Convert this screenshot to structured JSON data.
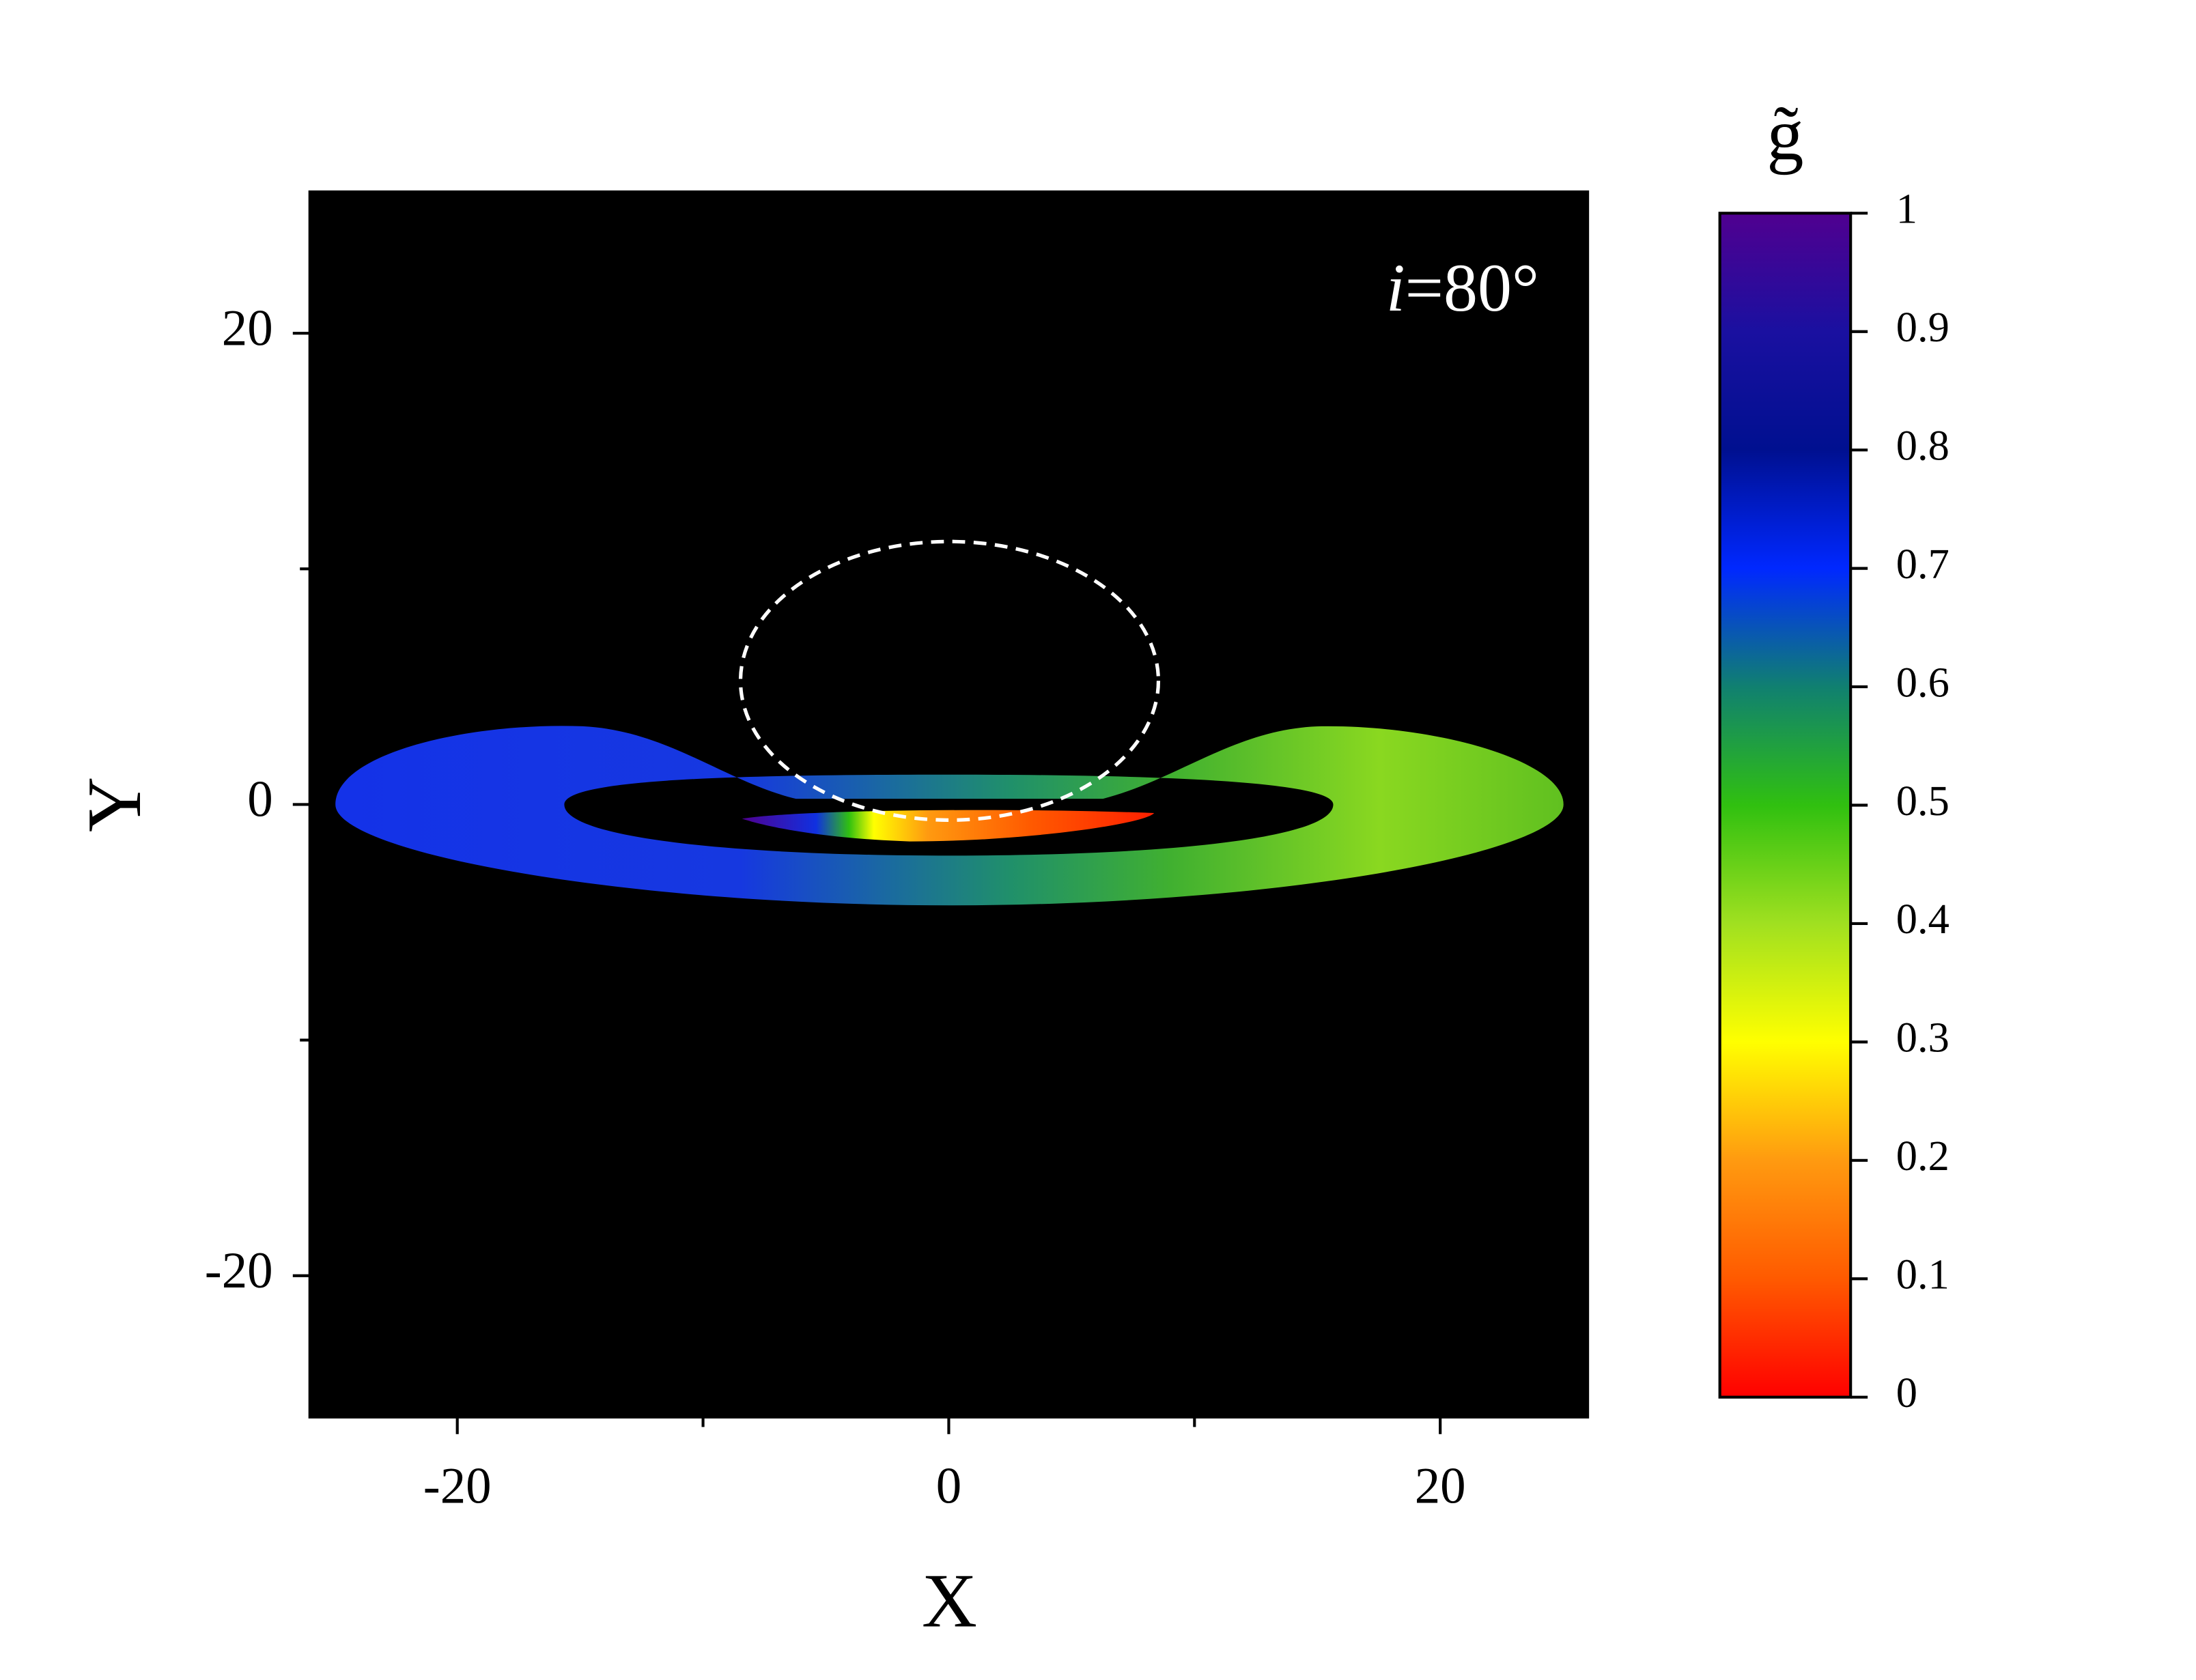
{
  "chart_data": {
    "type": "image",
    "annotation": "i=80°",
    "xlabel": "X",
    "ylabel": "Y",
    "xlim": [
      -26,
      26
    ],
    "xticks": [
      -20,
      0,
      20
    ],
    "xminorticks": [
      -10,
      10
    ],
    "ylim": [
      -26,
      26
    ],
    "yticks": [
      -20,
      0,
      20
    ],
    "yminorticks": [
      -10,
      10
    ],
    "colorbar": {
      "title": "g̃",
      "zlim": [
        0,
        1
      ],
      "zticks": [
        0,
        0.1,
        0.2,
        0.3,
        0.4,
        0.5,
        0.6,
        0.7,
        0.8,
        0.9,
        1
      ],
      "colormap": [
        "#ff0000",
        "#ff5a00",
        "#ff9a10",
        "#ffff00",
        "#a0e020",
        "#30c010",
        "#108070",
        "#0028ff",
        "#001090",
        "#1a10a0",
        "#500090"
      ]
    }
  }
}
